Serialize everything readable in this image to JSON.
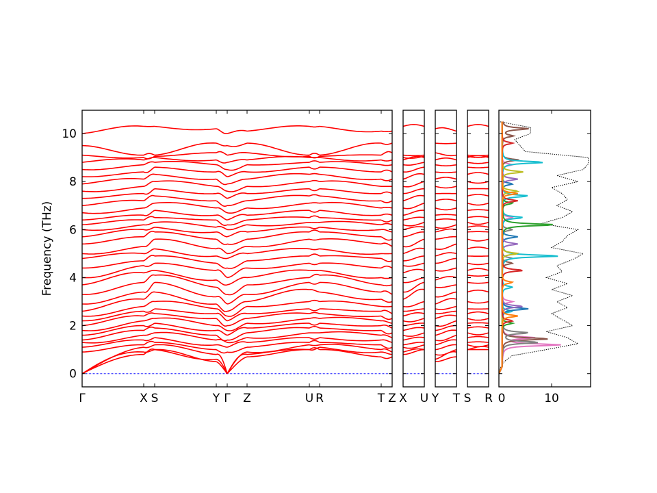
{
  "chart_data": {
    "type": "line",
    "ylabel": "Frequency (THz)",
    "ylim": [
      -0.55,
      10.97
    ],
    "yticks": [
      "0",
      "2",
      "4",
      "6",
      "8",
      "10"
    ],
    "ytick_values": [
      0,
      2,
      4,
      6,
      8,
      10
    ],
    "band_colors": {
      "bands": "#ff0000",
      "zero_line": "#0000ff"
    },
    "panels": [
      {
        "path": [
          "Γ",
          "X",
          "S",
          "Y",
          "Γ",
          "Z",
          "U",
          "R",
          "T",
          "Z"
        ],
        "labels": [
          "Γ",
          "X",
          "S",
          "Y",
          "Γ",
          "Z",
          "U",
          "R",
          "T",
          "Z"
        ]
      },
      {
        "path": [
          "X",
          "U"
        ],
        "labels": [
          "X",
          "U"
        ]
      },
      {
        "path": [
          "Y",
          "T"
        ],
        "labels": [
          "Y",
          "T"
        ]
      },
      {
        "path": [
          "S",
          "R"
        ],
        "labels": [
          "S",
          "R"
        ]
      }
    ],
    "band_frequencies_at_points": {
      "Γ": [
        0,
        0,
        0,
        0.9,
        1.1,
        1.3,
        1.4,
        1.6,
        1.8,
        2.0,
        2.2,
        2.4,
        2.6,
        2.9,
        3.3,
        3.7,
        4.0,
        4.4,
        4.8,
        5.0,
        5.4,
        5.7,
        6.0,
        6.2,
        6.4,
        6.7,
        7.0,
        7.3,
        7.6,
        7.9,
        8.2,
        8.5,
        8.8,
        9.1,
        9.5,
        10.0
      ],
      "X": [
        0.8,
        0.9,
        1.1,
        1.2,
        1.4,
        1.6,
        1.8,
        2.0,
        2.2,
        2.4,
        2.6,
        2.8,
        3.1,
        3.4,
        3.8,
        4.2,
        4.5,
        4.7,
        5.0,
        5.3,
        5.7,
        6.0,
        6.2,
        6.4,
        6.6,
        6.9,
        7.2,
        7.5,
        7.8,
        8.1,
        8.4,
        8.7,
        8.9,
        9.0,
        9.1,
        10.3
      ],
      "S": [
        1.0,
        1.0,
        1.2,
        1.3,
        1.5,
        1.7,
        1.9,
        2.1,
        2.3,
        2.5,
        2.7,
        3.0,
        3.4,
        3.8,
        4.1,
        4.3,
        4.6,
        4.9,
        5.2,
        5.6,
        5.9,
        6.1,
        6.3,
        6.5,
        6.8,
        7.1,
        7.4,
        7.7,
        8.0,
        8.3,
        8.6,
        8.8,
        9.0,
        9.05,
        9.1,
        10.3
      ],
      "Y": [
        0.5,
        0.6,
        0.8,
        1.0,
        1.2,
        1.4,
        1.6,
        1.8,
        2.0,
        2.3,
        2.5,
        2.7,
        2.9,
        3.2,
        3.6,
        3.9,
        4.3,
        4.6,
        4.9,
        5.2,
        5.6,
        5.9,
        6.1,
        6.4,
        6.6,
        6.9,
        7.2,
        7.5,
        7.8,
        8.1,
        8.4,
        8.7,
        8.9,
        9.2,
        9.6,
        10.2
      ],
      "Z": [
        0.7,
        0.8,
        0.9,
        1.1,
        1.3,
        1.5,
        1.7,
        1.9,
        2.1,
        2.3,
        2.5,
        2.8,
        3.0,
        3.3,
        3.7,
        4.0,
        4.4,
        4.7,
        5.0,
        5.3,
        5.6,
        5.9,
        6.2,
        6.4,
        6.6,
        6.9,
        7.2,
        7.5,
        7.8,
        8.1,
        8.4,
        8.7,
        8.9,
        9.2,
        9.6,
        10.1
      ],
      "U": [
        1.0,
        1.0,
        1.2,
        1.3,
        1.5,
        1.7,
        1.9,
        2.1,
        2.3,
        2.5,
        2.7,
        3.0,
        3.5,
        3.8,
        4.0,
        4.3,
        4.6,
        4.9,
        5.2,
        5.6,
        5.9,
        6.1,
        6.3,
        6.5,
        6.8,
        7.1,
        7.4,
        7.7,
        8.0,
        8.3,
        8.6,
        8.8,
        9.0,
        9.05,
        9.1,
        10.3
      ],
      "R": [
        1.0,
        1.1,
        1.2,
        1.3,
        1.5,
        1.7,
        1.9,
        2.1,
        2.3,
        2.5,
        2.7,
        3.0,
        3.4,
        3.8,
        4.1,
        4.3,
        4.6,
        4.9,
        5.2,
        5.6,
        5.9,
        6.1,
        6.3,
        6.5,
        6.8,
        7.1,
        7.4,
        7.7,
        8.0,
        8.3,
        8.6,
        8.8,
        9.0,
        9.05,
        9.1,
        10.3
      ],
      "T": [
        0.7,
        0.9,
        1.0,
        1.2,
        1.4,
        1.6,
        1.8,
        2.0,
        2.2,
        2.4,
        2.6,
        2.8,
        3.1,
        3.4,
        3.7,
        4.0,
        4.4,
        4.8,
        5.0,
        5.4,
        5.7,
        6.0,
        6.2,
        6.4,
        6.6,
        6.9,
        7.2,
        7.5,
        7.8,
        8.1,
        8.4,
        8.7,
        8.9,
        9.1,
        9.6,
        10.1
      ]
    },
    "dos": {
      "xlim": [
        0,
        17.4
      ],
      "xticks": [
        "0",
        "10"
      ],
      "xtick_values": [
        0,
        10
      ],
      "total_color": "#000000",
      "total": {
        "freq": [
          0,
          0.25,
          0.5,
          0.75,
          1.0,
          1.25,
          1.5,
          1.75,
          2.0,
          2.25,
          2.5,
          2.75,
          3.0,
          3.25,
          3.5,
          3.75,
          4.0,
          4.25,
          4.5,
          4.75,
          5.0,
          5.25,
          5.5,
          5.75,
          6.0,
          6.25,
          6.5,
          6.75,
          7.0,
          7.25,
          7.5,
          7.75,
          8.0,
          8.25,
          8.5,
          8.75,
          9.0,
          9.25,
          9.5,
          9.75,
          10.0,
          10.25,
          10.5
        ],
        "value": [
          0,
          0.3,
          1,
          2.5,
          9,
          15,
          13,
          9,
          14,
          12,
          10,
          13,
          11,
          14,
          10,
          13,
          9,
          12,
          11,
          14,
          16,
          10,
          12,
          13,
          15,
          8,
          12,
          14,
          11,
          13,
          12,
          10,
          15,
          11,
          16,
          17,
          17,
          5,
          4,
          3,
          6,
          6,
          0
        ]
      },
      "partials": [
        {
          "color": "#e377c2",
          "peaks": [
            [
              1.2,
              11
            ],
            [
              1.5,
              6
            ],
            [
              3.0,
              2
            ],
            [
              6.5,
              2
            ],
            [
              8.7,
              2
            ]
          ]
        },
        {
          "color": "#8c564b",
          "peaks": [
            [
              1.45,
              9
            ],
            [
              4.6,
              2
            ],
            [
              8.9,
              3
            ],
            [
              10.2,
              5
            ],
            [
              9.9,
              2
            ]
          ]
        },
        {
          "color": "#7f7f7f",
          "peaks": [
            [
              1.3,
              7
            ],
            [
              1.7,
              5
            ],
            [
              4.8,
              2
            ],
            [
              6.0,
              2
            ]
          ]
        },
        {
          "color": "#17becf",
          "peaks": [
            [
              4.9,
              11
            ],
            [
              6.5,
              4
            ],
            [
              8.8,
              8
            ],
            [
              7.4,
              5
            ],
            [
              2.6,
              2
            ],
            [
              3.6,
              2
            ]
          ]
        },
        {
          "color": "#2ca02c",
          "peaks": [
            [
              6.2,
              10
            ],
            [
              2.1,
              2
            ],
            [
              7.1,
              2
            ]
          ]
        },
        {
          "color": "#1f77b4",
          "peaks": [
            [
              2.7,
              5
            ],
            [
              5.7,
              3
            ],
            [
              7.9,
              2
            ]
          ]
        },
        {
          "color": "#9467bd",
          "peaks": [
            [
              2.8,
              4
            ],
            [
              5.4,
              3
            ],
            [
              8.1,
              3
            ]
          ]
        },
        {
          "color": "#bcbd22",
          "peaks": [
            [
              5.0,
              3
            ],
            [
              8.4,
              4
            ],
            [
              7.6,
              3
            ]
          ]
        },
        {
          "color": "#d62728",
          "peaks": [
            [
              4.3,
              4
            ],
            [
              7.2,
              3
            ],
            [
              2.2,
              2
            ],
            [
              9.6,
              2
            ]
          ]
        },
        {
          "color": "#ff7f0e",
          "peaks": [
            [
              2.4,
              3
            ],
            [
              7.5,
              3
            ],
            [
              3.8,
              2
            ]
          ]
        }
      ]
    }
  }
}
